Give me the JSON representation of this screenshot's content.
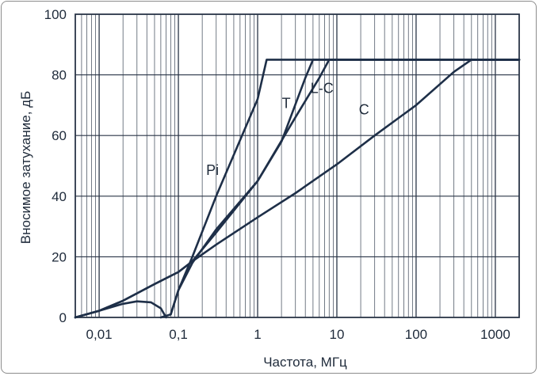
{
  "chart_data": {
    "type": "line",
    "xlabel": "Частота, МГц",
    "ylabel": "Вносимое затухание, дБ",
    "xscale": "log",
    "xlim": [
      0.005,
      2000
    ],
    "ylim": [
      0,
      100
    ],
    "grid": true,
    "x_ticks": [
      {
        "value": 0.01,
        "label": "0,01"
      },
      {
        "value": 0.1,
        "label": "0,1"
      },
      {
        "value": 1,
        "label": "1"
      },
      {
        "value": 10,
        "label": "10"
      },
      {
        "value": 100,
        "label": "100"
      },
      {
        "value": 1000,
        "label": "1000"
      }
    ],
    "y_ticks": [
      {
        "value": 0,
        "label": "0"
      },
      {
        "value": 20,
        "label": "20"
      },
      {
        "value": 40,
        "label": "40"
      },
      {
        "value": 60,
        "label": "60"
      },
      {
        "value": 80,
        "label": "80"
      },
      {
        "value": 100,
        "label": "100"
      }
    ],
    "series": [
      {
        "name": "C",
        "label_at": {
          "x": 22,
          "y": 67
        },
        "points": [
          [
            0.005,
            0
          ],
          [
            0.01,
            2.2
          ],
          [
            0.02,
            5.5
          ],
          [
            0.05,
            11
          ],
          [
            0.1,
            15
          ],
          [
            0.15,
            18.5
          ],
          [
            0.3,
            24
          ],
          [
            1,
            33
          ],
          [
            3,
            41
          ],
          [
            10,
            50.5
          ],
          [
            30,
            60
          ],
          [
            100,
            70
          ],
          [
            300,
            81
          ],
          [
            500,
            85
          ],
          [
            2000,
            85
          ]
        ]
      },
      {
        "name": "L-C",
        "label_at": {
          "x": 6.5,
          "y": 74
        },
        "points": [
          [
            0.005,
            0
          ],
          [
            0.01,
            2.2
          ],
          [
            0.02,
            5.5
          ],
          [
            0.05,
            11
          ],
          [
            0.1,
            15
          ],
          [
            0.15,
            18.5
          ],
          [
            0.3,
            28
          ],
          [
            1,
            45
          ],
          [
            3,
            66
          ],
          [
            6,
            79
          ],
          [
            8,
            85
          ],
          [
            2000,
            85
          ]
        ]
      },
      {
        "name": "T",
        "label_at": {
          "x": 2.3,
          "y": 69
        },
        "points": [
          [
            0.06,
            0
          ],
          [
            0.08,
            1
          ],
          [
            0.1,
            9
          ],
          [
            0.15,
            18
          ],
          [
            0.3,
            29
          ],
          [
            1,
            45
          ],
          [
            2,
            58
          ],
          [
            4,
            79
          ],
          [
            5,
            85
          ],
          [
            2000,
            85
          ]
        ]
      },
      {
        "name": "Pi",
        "label_at": {
          "x": 0.27,
          "y": 47
        },
        "points": [
          [
            0.005,
            0
          ],
          [
            0.01,
            2.2
          ],
          [
            0.02,
            4.5
          ],
          [
            0.03,
            5.3
          ],
          [
            0.045,
            5
          ],
          [
            0.06,
            3
          ],
          [
            0.07,
            0
          ]
        ],
        "points2": [
          [
            0.08,
            1
          ],
          [
            0.1,
            9
          ],
          [
            0.15,
            20
          ],
          [
            0.3,
            40
          ],
          [
            1,
            72
          ],
          [
            1.3,
            85
          ],
          [
            2000,
            85
          ]
        ]
      }
    ]
  }
}
